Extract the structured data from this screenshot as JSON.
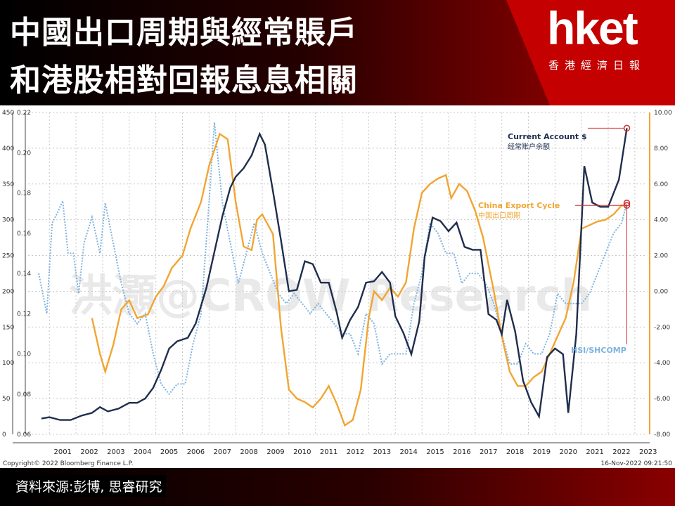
{
  "header": {
    "title_line1": "中國出口周期與經常賬戶",
    "title_line2": "和港股相對回報息息相關",
    "logo": "hket",
    "logo_sub": "香港經濟日報"
  },
  "footer": {
    "source": "資料來源:彭博, 思睿研究"
  },
  "chart_meta": {
    "copyright": "Copyright© 2022 Bloomberg Finance L.P.",
    "timestamp": "16-Nov-2022 09:21:50",
    "watermark": "洪灝@CROW Research"
  },
  "chart_data": {
    "type": "line",
    "x_ticks": [
      "2001",
      "2002",
      "2003",
      "2004",
      "2005",
      "2006",
      "2007",
      "2008",
      "2009",
      "2010",
      "2011",
      "2012",
      "2013",
      "2014",
      "2015",
      "2016",
      "2017",
      "2018",
      "2019",
      "2020",
      "2021",
      "2022",
      "2023"
    ],
    "axes": {
      "left_outer": {
        "range": [
          0,
          450
        ],
        "ticks": [
          "0",
          "50",
          "100",
          "150",
          "200",
          "250",
          "300",
          "350",
          "400",
          "450"
        ]
      },
      "left_inner": {
        "range": [
          0.06,
          0.22
        ],
        "ticks": [
          "0.06",
          "0.08",
          "0.10",
          "0.12",
          "0.14",
          "0.16",
          "0.18",
          "0.20",
          "0.22"
        ]
      },
      "right": {
        "range": [
          -8,
          10
        ],
        "ticks": [
          "-8.00",
          "-6.00",
          "-4.00",
          "-2.00",
          "0.00",
          "2.00",
          "4.00",
          "6.00",
          "8.00",
          "10.00"
        ]
      }
    },
    "grid": true,
    "series": [
      {
        "name": "Current Account $",
        "name_cn": "经常账户余额",
        "color": "#1f2d4d",
        "axis": "left_outer",
        "points": [
          [
            2000.7,
            22
          ],
          [
            2001.0,
            24
          ],
          [
            2001.4,
            20
          ],
          [
            2001.8,
            20
          ],
          [
            2002.2,
            26
          ],
          [
            2002.6,
            30
          ],
          [
            2002.9,
            38
          ],
          [
            2003.2,
            32
          ],
          [
            2003.6,
            36
          ],
          [
            2004.0,
            44
          ],
          [
            2004.3,
            44
          ],
          [
            2004.6,
            50
          ],
          [
            2004.9,
            65
          ],
          [
            2005.2,
            90
          ],
          [
            2005.5,
            120
          ],
          [
            2005.8,
            130
          ],
          [
            2006.2,
            135
          ],
          [
            2006.5,
            155
          ],
          [
            2006.9,
            205
          ],
          [
            2007.2,
            255
          ],
          [
            2007.5,
            305
          ],
          [
            2007.8,
            345
          ],
          [
            2008.0,
            360
          ],
          [
            2008.3,
            372
          ],
          [
            2008.6,
            390
          ],
          [
            2008.9,
            420
          ],
          [
            2009.1,
            405
          ],
          [
            2009.4,
            340
          ],
          [
            2009.7,
            272
          ],
          [
            2010.0,
            200
          ],
          [
            2010.3,
            202
          ],
          [
            2010.6,
            242
          ],
          [
            2010.9,
            238
          ],
          [
            2011.2,
            212
          ],
          [
            2011.5,
            212
          ],
          [
            2011.8,
            170
          ],
          [
            2012.0,
            135
          ],
          [
            2012.3,
            160
          ],
          [
            2012.6,
            178
          ],
          [
            2012.9,
            212
          ],
          [
            2013.2,
            214
          ],
          [
            2013.5,
            227
          ],
          [
            2013.8,
            212
          ],
          [
            2014.0,
            165
          ],
          [
            2014.3,
            142
          ],
          [
            2014.6,
            112
          ],
          [
            2014.9,
            158
          ],
          [
            2015.1,
            248
          ],
          [
            2015.4,
            303
          ],
          [
            2015.7,
            298
          ],
          [
            2016.0,
            284
          ],
          [
            2016.3,
            296
          ],
          [
            2016.6,
            262
          ],
          [
            2016.9,
            258
          ],
          [
            2017.2,
            258
          ],
          [
            2017.5,
            168
          ],
          [
            2017.8,
            160
          ],
          [
            2018.0,
            140
          ],
          [
            2018.2,
            188
          ],
          [
            2018.5,
            144
          ],
          [
            2018.8,
            75
          ],
          [
            2019.1,
            45
          ],
          [
            2019.4,
            25
          ],
          [
            2019.7,
            108
          ],
          [
            2020.0,
            120
          ],
          [
            2020.3,
            112
          ],
          [
            2020.5,
            30
          ],
          [
            2020.8,
            140
          ],
          [
            2021.1,
            375
          ],
          [
            2021.4,
            324
          ],
          [
            2021.7,
            318
          ],
          [
            2022.0,
            318
          ],
          [
            2022.4,
            356
          ],
          [
            2022.7,
            428
          ]
        ]
      },
      {
        "name": "China Export Cycle",
        "name_cn": "中国出口周期",
        "color": "#f2a532",
        "axis": "right",
        "points": [
          [
            2002.6,
            -1.5
          ],
          [
            2002.9,
            -3.5
          ],
          [
            2003.1,
            -4.5
          ],
          [
            2003.4,
            -3.0
          ],
          [
            2003.7,
            -1.0
          ],
          [
            2004.0,
            -0.5
          ],
          [
            2004.3,
            -1.5
          ],
          [
            2004.7,
            -1.3
          ],
          [
            2005.0,
            -0.3
          ],
          [
            2005.3,
            0.3
          ],
          [
            2005.6,
            1.3
          ],
          [
            2006.0,
            2.0
          ],
          [
            2006.3,
            3.5
          ],
          [
            2006.7,
            5.0
          ],
          [
            2007.0,
            7.0
          ],
          [
            2007.4,
            8.8
          ],
          [
            2007.7,
            8.5
          ],
          [
            2008.0,
            5.0
          ],
          [
            2008.3,
            2.5
          ],
          [
            2008.6,
            2.3
          ],
          [
            2008.8,
            4.0
          ],
          [
            2009.0,
            4.3
          ],
          [
            2009.4,
            3.2
          ],
          [
            2009.7,
            -2.0
          ],
          [
            2010.0,
            -5.5
          ],
          [
            2010.3,
            -6.0
          ],
          [
            2010.6,
            -6.2
          ],
          [
            2010.9,
            -6.5
          ],
          [
            2011.2,
            -6.0
          ],
          [
            2011.5,
            -5.3
          ],
          [
            2011.8,
            -6.3
          ],
          [
            2012.1,
            -7.5
          ],
          [
            2012.4,
            -7.2
          ],
          [
            2012.7,
            -5.5
          ],
          [
            2013.0,
            -1.5
          ],
          [
            2013.2,
            0.0
          ],
          [
            2013.5,
            -0.5
          ],
          [
            2013.8,
            0.2
          ],
          [
            2014.1,
            -0.3
          ],
          [
            2014.4,
            0.5
          ],
          [
            2014.7,
            3.5
          ],
          [
            2015.0,
            5.5
          ],
          [
            2015.3,
            6.0
          ],
          [
            2015.6,
            6.3
          ],
          [
            2015.9,
            6.5
          ],
          [
            2016.1,
            5.2
          ],
          [
            2016.4,
            6.0
          ],
          [
            2016.7,
            5.6
          ],
          [
            2017.0,
            4.5
          ],
          [
            2017.3,
            3.0
          ],
          [
            2017.7,
            0.0
          ],
          [
            2018.0,
            -2.5
          ],
          [
            2018.3,
            -4.5
          ],
          [
            2018.6,
            -5.3
          ],
          [
            2018.9,
            -5.3
          ],
          [
            2019.2,
            -4.8
          ],
          [
            2019.5,
            -4.5
          ],
          [
            2019.8,
            -3.5
          ],
          [
            2020.1,
            -2.5
          ],
          [
            2020.4,
            -1.5
          ],
          [
            2020.7,
            0.5
          ],
          [
            2021.0,
            3.5
          ],
          [
            2021.3,
            3.7
          ],
          [
            2021.6,
            3.9
          ],
          [
            2021.9,
            4.0
          ],
          [
            2022.2,
            4.3
          ],
          [
            2022.5,
            4.8
          ],
          [
            2022.7,
            4.8
          ]
        ]
      },
      {
        "name": "HSI/SHCOMP",
        "name_cn": "",
        "color": "#7fb3e0",
        "axis": "left_inner",
        "points": [
          [
            2000.6,
            0.14
          ],
          [
            2000.9,
            0.12
          ],
          [
            2001.1,
            0.165
          ],
          [
            2001.3,
            0.17
          ],
          [
            2001.5,
            0.176
          ],
          [
            2001.7,
            0.15
          ],
          [
            2001.9,
            0.15
          ],
          [
            2002.1,
            0.13
          ],
          [
            2002.3,
            0.155
          ],
          [
            2002.6,
            0.168
          ],
          [
            2002.9,
            0.15
          ],
          [
            2003.1,
            0.175
          ],
          [
            2003.4,
            0.155
          ],
          [
            2003.7,
            0.135
          ],
          [
            2004.0,
            0.12
          ],
          [
            2004.3,
            0.115
          ],
          [
            2004.6,
            0.12
          ],
          [
            2004.9,
            0.1
          ],
          [
            2005.2,
            0.085
          ],
          [
            2005.5,
            0.08
          ],
          [
            2005.8,
            0.085
          ],
          [
            2006.1,
            0.085
          ],
          [
            2006.4,
            0.105
          ],
          [
            2006.7,
            0.12
          ],
          [
            2007.0,
            0.175
          ],
          [
            2007.2,
            0.215
          ],
          [
            2007.5,
            0.175
          ],
          [
            2007.8,
            0.155
          ],
          [
            2008.1,
            0.135
          ],
          [
            2008.4,
            0.15
          ],
          [
            2008.7,
            0.165
          ],
          [
            2009.0,
            0.15
          ],
          [
            2009.3,
            0.14
          ],
          [
            2009.6,
            0.13
          ],
          [
            2009.9,
            0.125
          ],
          [
            2010.2,
            0.13
          ],
          [
            2010.5,
            0.125
          ],
          [
            2010.8,
            0.12
          ],
          [
            2011.1,
            0.125
          ],
          [
            2011.4,
            0.12
          ],
          [
            2011.7,
            0.115
          ],
          [
            2012.0,
            0.11
          ],
          [
            2012.3,
            0.11
          ],
          [
            2012.6,
            0.1
          ],
          [
            2012.9,
            0.12
          ],
          [
            2013.2,
            0.115
          ],
          [
            2013.5,
            0.095
          ],
          [
            2013.8,
            0.1
          ],
          [
            2014.1,
            0.1
          ],
          [
            2014.4,
            0.1
          ],
          [
            2014.7,
            0.125
          ],
          [
            2015.0,
            0.14
          ],
          [
            2015.3,
            0.165
          ],
          [
            2015.6,
            0.16
          ],
          [
            2015.9,
            0.15
          ],
          [
            2016.2,
            0.15
          ],
          [
            2016.5,
            0.135
          ],
          [
            2016.8,
            0.14
          ],
          [
            2017.1,
            0.14
          ],
          [
            2017.4,
            0.135
          ],
          [
            2017.7,
            0.125
          ],
          [
            2018.0,
            0.11
          ],
          [
            2018.3,
            0.095
          ],
          [
            2018.6,
            0.095
          ],
          [
            2018.9,
            0.105
          ],
          [
            2019.2,
            0.1
          ],
          [
            2019.5,
            0.1
          ],
          [
            2019.8,
            0.11
          ],
          [
            2020.1,
            0.13
          ],
          [
            2020.4,
            0.125
          ],
          [
            2020.7,
            0.125
          ],
          [
            2021.0,
            0.125
          ],
          [
            2021.3,
            0.13
          ],
          [
            2021.6,
            0.14
          ],
          [
            2021.9,
            0.15
          ],
          [
            2022.2,
            0.16
          ],
          [
            2022.5,
            0.165
          ],
          [
            2022.7,
            0.175
          ]
        ]
      }
    ],
    "annotations": [
      {
        "series": "Current Account $",
        "line1": "Current Account $",
        "line2": "经常账户余额"
      },
      {
        "series": "China Export Cycle",
        "line1": "China Export Cycle",
        "line2": "中国出口周期"
      },
      {
        "series": "HSI/SHCOMP",
        "line1": "HSI/SHCOMP",
        "line2": ""
      }
    ]
  }
}
